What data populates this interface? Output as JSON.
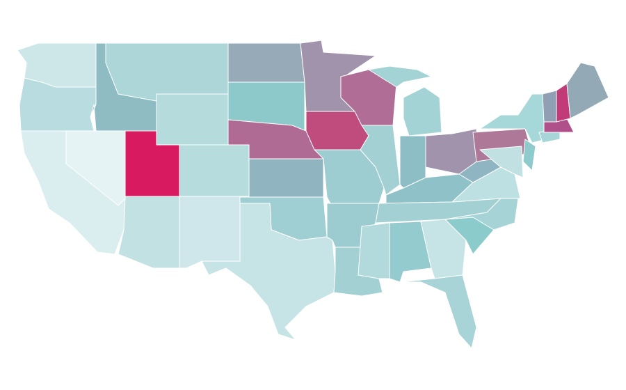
{
  "map": {
    "fills": [
      "#cde6e8",
      "#b8dcdf",
      "#daeef0",
      "#e6f3f4",
      "#8fbcc3",
      "#acd6d8",
      "#b5dbdd",
      "#d81b60",
      "#b6dcdd",
      "#c2e1e3",
      "#cfe7ea",
      "#96aab7",
      "#8dc9cb",
      "#b06b94",
      "#90b5c0",
      "#9fcfd2",
      "#c6e4e6",
      "#a093ab",
      "#c04c7e",
      "#9dcdd0",
      "#9ccccf",
      "#a2d0d3",
      "#b06e96",
      "#a2d0d3",
      "#a4d3d5",
      "#a4d3d5",
      "#8ebec5",
      "#a093ab",
      "#8ec2c8",
      "#a2d0d3",
      "#b2dadc",
      "#94cbce",
      "#c6e4e6",
      "#a8d4d7",
      "#8ccbcc",
      "#a6d4d6",
      "#bde0e2",
      "#8fb5c2",
      "#ae7899",
      "#a6d7d9",
      "#8fcbcd",
      "#c0e0e2",
      "#a8d6d8",
      "#b0508b",
      "#909fb3",
      "#c03b78",
      "#93a9b6"
    ]
  }
}
